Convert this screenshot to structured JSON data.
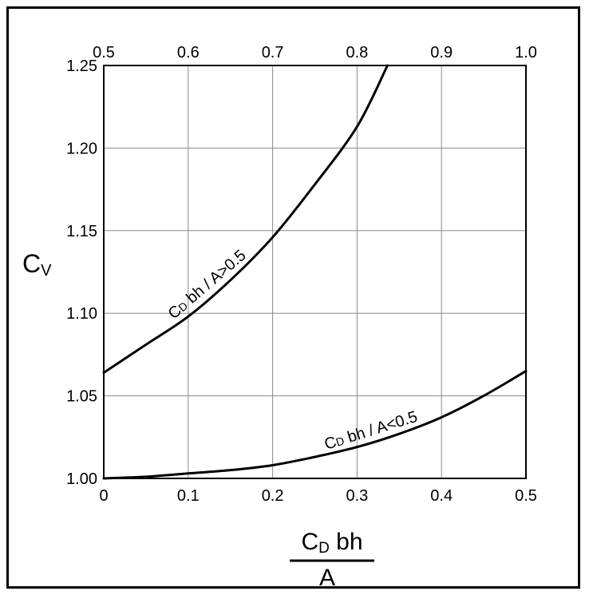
{
  "chart_data": {
    "type": "line",
    "title": "",
    "y_axis": {
      "label_main": "C",
      "label_sub": "V",
      "range": [
        1.0,
        1.25
      ],
      "ticks": [
        "1.00",
        "1.05",
        "1.10",
        "1.15",
        "1.20",
        "1.25"
      ]
    },
    "x_axis_bottom": {
      "label_numerator_main": "C",
      "label_numerator_sub": "D",
      "label_numerator_rest": " bh",
      "label_denominator": "A",
      "range": [
        0,
        0.5
      ],
      "ticks": [
        "0",
        "0.1",
        "0.2",
        "0.3",
        "0.4",
        "0.5"
      ]
    },
    "x_axis_top": {
      "range": [
        0.5,
        1.0
      ],
      "ticks": [
        "0.5",
        "0.6",
        "0.7",
        "0.8",
        "0.9",
        "1.0"
      ]
    },
    "grid": true,
    "series": [
      {
        "name_main": "C",
        "name_sub": "D",
        "name_rest": " bh / A>0.5",
        "axis": "top",
        "x": [
          0.5,
          0.55,
          0.6,
          0.65,
          0.7,
          0.75,
          0.8,
          0.836
        ],
        "y": [
          1.064,
          1.081,
          1.098,
          1.12,
          1.146,
          1.178,
          1.213,
          1.25
        ]
      },
      {
        "name_main": "C",
        "name_sub": "D",
        "name_rest": " bh / A<0.5",
        "axis": "bottom",
        "x": [
          0,
          0.05,
          0.1,
          0.15,
          0.2,
          0.25,
          0.3,
          0.35,
          0.4,
          0.45,
          0.5
        ],
        "y": [
          1.0,
          1.001,
          1.003,
          1.005,
          1.008,
          1.013,
          1.019,
          1.027,
          1.037,
          1.05,
          1.065
        ]
      }
    ]
  }
}
